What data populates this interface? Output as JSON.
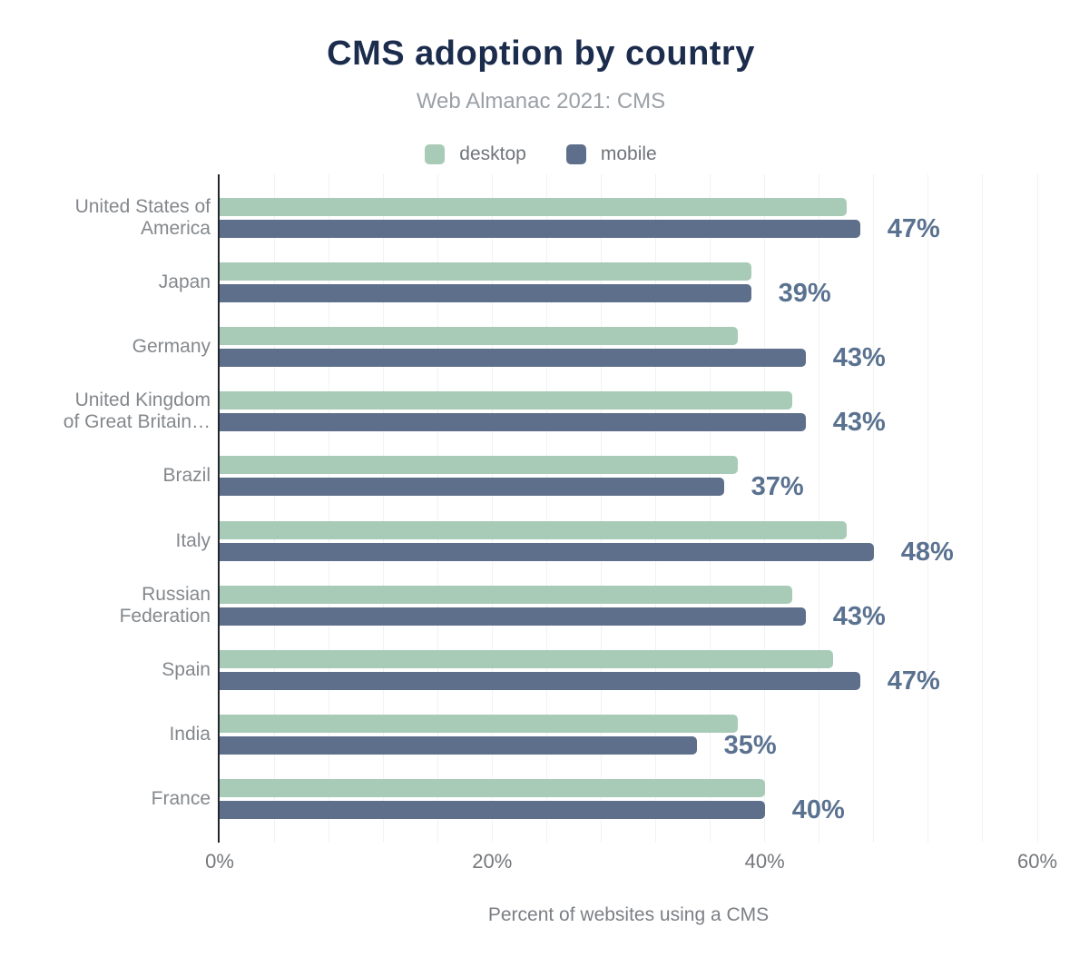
{
  "chart_data": {
    "type": "bar",
    "orientation": "horizontal",
    "title": "CMS adoption by country",
    "subtitle": "Web Almanac 2021: CMS",
    "xlabel": "Percent of websites using a CMS",
    "xlim": [
      0,
      60
    ],
    "x_ticks": [
      {
        "value": 0,
        "label": "0%"
      },
      {
        "value": 20,
        "label": "20%"
      },
      {
        "value": 40,
        "label": "40%"
      },
      {
        "value": 60,
        "label": "60%"
      }
    ],
    "gridline_step_pct": 4,
    "grid": true,
    "legend_position": "top",
    "categories": [
      "United States of\nAmerica",
      "Japan",
      "Germany",
      "United Kingdom\nof Great Britain…",
      "Brazil",
      "Italy",
      "Russian\nFederation",
      "Spain",
      "India",
      "France"
    ],
    "series": [
      {
        "name": "desktop",
        "color": "#a8cbb8",
        "values": [
          46,
          39,
          38,
          42,
          38,
          46,
          42,
          45,
          38,
          40
        ]
      },
      {
        "name": "mobile",
        "color": "#5e6f8b",
        "values": [
          47,
          39,
          43,
          43,
          37,
          48,
          43,
          47,
          35,
          40
        ]
      }
    ],
    "annotations": {
      "labeled_series": "mobile",
      "labels": [
        "47%",
        "39%",
        "43%",
        "43%",
        "37%",
        "48%",
        "43%",
        "47%",
        "35%",
        "40%"
      ]
    }
  },
  "colors": {
    "background": "#ffffff",
    "title": "#1c2c4c",
    "subtitle": "#9aa0a6",
    "legend_text": "#6f757b",
    "axis_line": "#22272f",
    "gridline": "#f1f2f2",
    "tick_label": "#75787c",
    "axis_label": "#7b7f84",
    "category_label": "#84888c",
    "value_label": "#5a7290",
    "desktop_bar": "#a8cbb8",
    "mobile_bar": "#5e6f8b"
  }
}
